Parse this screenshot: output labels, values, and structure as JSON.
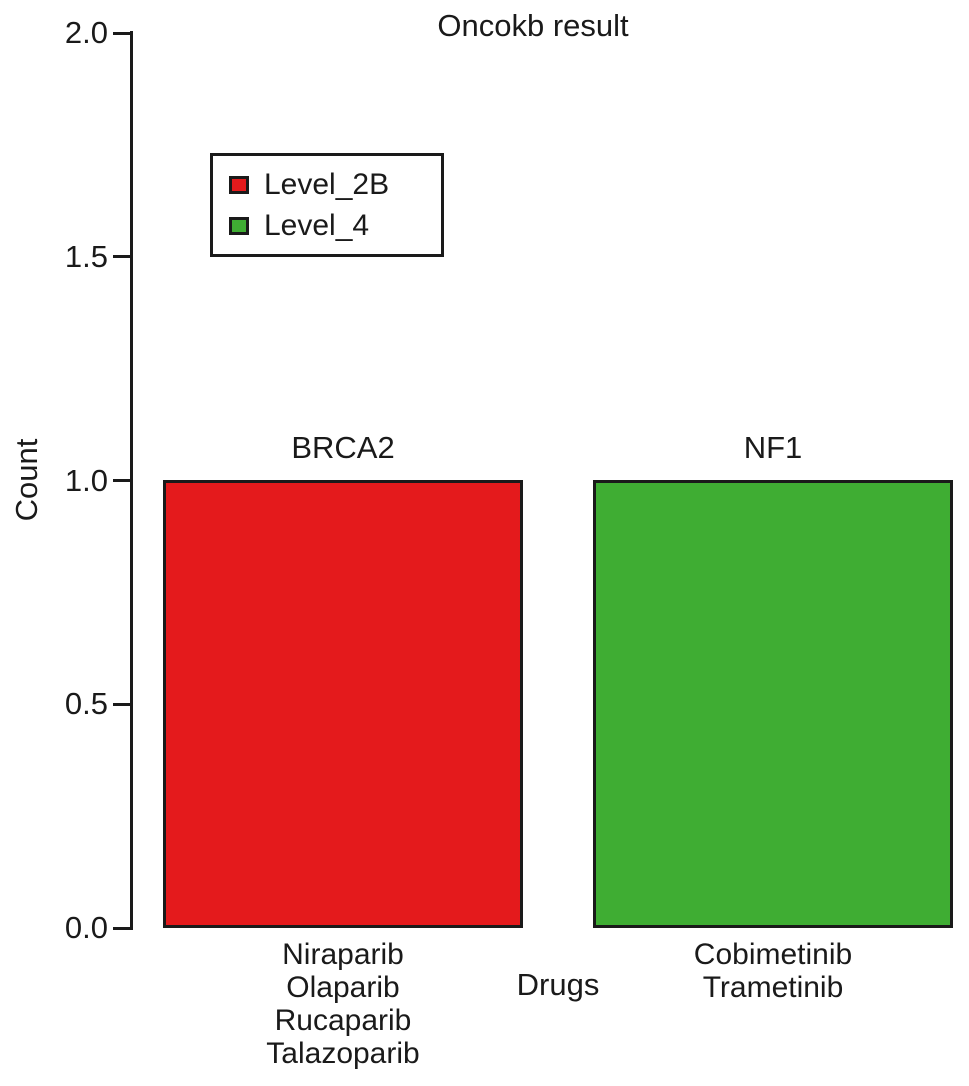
{
  "chart_data": {
    "type": "bar",
    "title": "Oncokb result",
    "xlabel": "Drugs",
    "ylabel": "Count",
    "ylim": [
      0,
      2
    ],
    "yticks": [
      "0.0",
      "0.5",
      "1.0",
      "1.5",
      "2.0"
    ],
    "grid": false,
    "axis_color": "#1a1a1a",
    "legend": {
      "position": "upper-left",
      "entries": [
        {
          "label": "Level_2B",
          "color": "#e41a1c"
        },
        {
          "label": "Level_4",
          "color": "#3fad33"
        }
      ]
    },
    "bars": [
      {
        "gene": "BRCA2",
        "value": 1,
        "level": "Level_2B",
        "color": "#e41a1c",
        "drugs": [
          "Niraparib",
          "Olaparib",
          "Rucaparib",
          "Talazoparib"
        ]
      },
      {
        "gene": "NF1",
        "value": 1,
        "level": "Level_4",
        "color": "#3fad33",
        "drugs": [
          "Cobimetinib",
          "Trametinib"
        ]
      }
    ]
  }
}
